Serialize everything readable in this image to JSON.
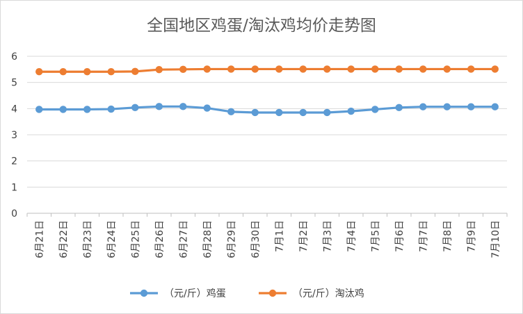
{
  "chart_data": {
    "type": "line",
    "title": "全国地区鸡蛋/淘汰鸡均价走势图",
    "categories": [
      "6月21日",
      "6月22日",
      "6月23日",
      "6月24日",
      "6月25日",
      "6月26日",
      "6月27日",
      "6月28日",
      "6月29日",
      "6月30日",
      "7月1日",
      "7月2日",
      "7月3日",
      "7月4日",
      "7月5日",
      "7月6日",
      "7月7日",
      "7月8日",
      "7月9日",
      "7月10日"
    ],
    "series": [
      {
        "name": "（元/斤）鸡蛋",
        "color": "#5b9bd5",
        "values": [
          3.97,
          3.97,
          3.97,
          3.98,
          4.04,
          4.08,
          4.08,
          4.02,
          3.88,
          3.85,
          3.85,
          3.85,
          3.85,
          3.9,
          3.97,
          4.04,
          4.07,
          4.07,
          4.07,
          4.07
        ]
      },
      {
        "name": "（元/斤）淘汰鸡",
        "color": "#ed7d31",
        "values": [
          5.41,
          5.41,
          5.41,
          5.41,
          5.42,
          5.49,
          5.5,
          5.51,
          5.51,
          5.51,
          5.51,
          5.51,
          5.51,
          5.51,
          5.51,
          5.51,
          5.51,
          5.51,
          5.51,
          5.51
        ]
      }
    ],
    "ylim": [
      0,
      6
    ],
    "yticks": [
      "0",
      "1",
      "2",
      "3",
      "4",
      "5",
      "6"
    ],
    "xlabel": "",
    "ylabel": "",
    "grid": true,
    "legend_position": "bottom"
  }
}
